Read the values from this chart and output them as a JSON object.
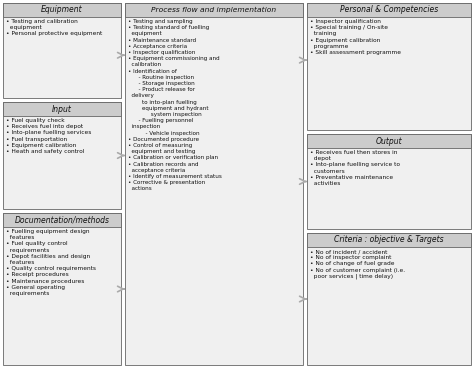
{
  "bg_color": "#ffffff",
  "header_bg": "#cccccc",
  "box_bg": "#f0f0f0",
  "border_color": "#666666",
  "text_color": "#111111",
  "arrow_color": "#aaaaaa",
  "sections": {
    "equipment": {
      "header": "Equipment",
      "items": "• Testing and calibration\n  equipment\n• Personal protective equipment"
    },
    "input": {
      "header": "Input",
      "items": "• Fuel quality check\n• Receives fuel into depot\n• Into-plane fuelling services\n• Fuel transportation\n• Equipment calibration\n• Heath and safety control"
    },
    "documentation": {
      "header": "Documentation/methods",
      "items": "• Fuelling equipment design\n  features\n• Fuel quality control\n  requirements\n• Depot facilities and design\n  features\n• Quality control requirements\n• Receipt procedures\n• Maintenance procedures\n• General operating\n  requirements"
    },
    "process": {
      "header": "Process flow and implementation",
      "items": "• Testing and sampling\n• Testing standard of fuelling\n  equipment\n• Maintenance standard\n• Acceptance criteria\n• Inspector qualification\n• Equipment commissioning and\n  calibration\n• Identification of\n      - Routine inspection\n      - Storage inspection\n      - Product release for\n  delivery\n        to into-plan fuelling\n        equipment and hydrant\n             system inspection\n      - Fuelling personnel\n  inspection\n          - Vehicle inspection\n• Documented procedure\n• Control of measuring\n  equipment and testing\n• Calibration or verification plan\n• Calibration records and\n  acceptance criteria\n• Identify of measurement status\n• Corrective & presentation\n  actions"
    },
    "personal": {
      "header": "Personal & Competencies",
      "items": "• Inspector qualification\n• Special training / On-site\n  training\n• Equipment calibration\n  programme\n• Skill assessment programme"
    },
    "output": {
      "header": "Output",
      "items": "• Receives fuel then stores in\n  depot\n• Into-plane fuelling service to\n  customers\n• Preventative maintenance\n  activities"
    },
    "criteria": {
      "header": "Criteria : objective & Targets",
      "items": "• No of incident / accident\n• No of inspector complaint\n• No of change of fuel grade\n• No of customer complaint (i.e.\n  poor services | time delay)"
    }
  }
}
